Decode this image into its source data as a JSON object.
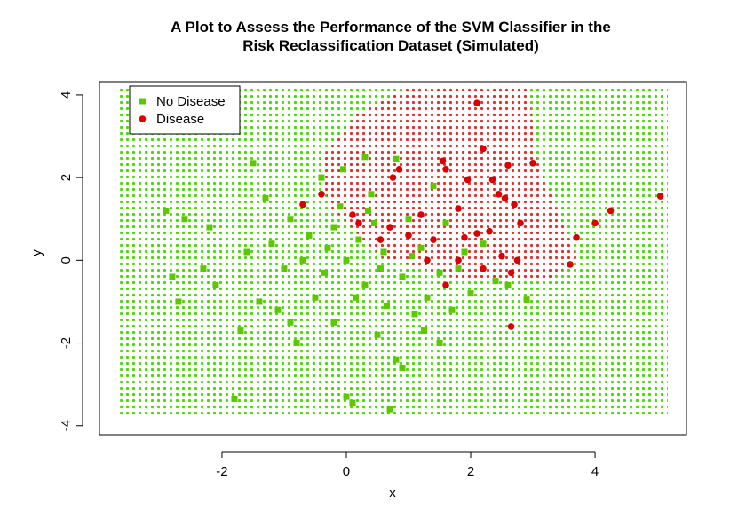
{
  "chart_data": {
    "type": "scatter",
    "title": [
      "A Plot to Assess the Performance of the SVM Classifier in the",
      "Risk Reclassification Dataset (Simulated)"
    ],
    "x_label": "x",
    "y_label": "y",
    "xlim": [
      -3.97,
      5.47
    ],
    "ylim": [
      -4.22,
      4.32
    ],
    "xticks": [
      -2,
      0,
      2,
      4
    ],
    "yticks": [
      -4,
      -2,
      0,
      2,
      4
    ],
    "legend_position": "top-left",
    "grid_extent": {
      "x": [
        -3.64,
        5.17
      ],
      "y": [
        -3.76,
        4.2
      ],
      "color": "#44dd00"
    },
    "decision_region": {
      "color": "#e03030",
      "x": [
        1.0,
        2.93,
        3.07,
        3.71,
        3.29,
        1.86,
        0.57,
        -0.29,
        -0.43,
        0.14
      ],
      "y": [
        4.2,
        4.2,
        2.43,
        0.06,
        -0.47,
        -0.47,
        0.06,
        1.35,
        2.43,
        3.5
      ]
    },
    "series": [
      {
        "name": "No Disease",
        "color": "#5cc800",
        "marker": "square",
        "x": [
          -2.9,
          -2.6,
          -2.8,
          -2.7,
          -2.2,
          -2.1,
          -1.8,
          -1.7,
          -1.5,
          -1.3,
          -1.2,
          -1.0,
          -1.1,
          -0.9,
          -0.8,
          -0.6,
          -0.5,
          -0.4,
          -0.3,
          -0.2,
          -0.1,
          0.0,
          0.0,
          0.1,
          0.2,
          0.3,
          0.4,
          0.5,
          0.6,
          0.7,
          0.8,
          0.9,
          1.0,
          1.1,
          1.2,
          1.3,
          1.4,
          1.5,
          1.6,
          1.7,
          1.9,
          2.0,
          2.2,
          2.4,
          2.6,
          1.5,
          0.9,
          -1.4,
          -0.7,
          0.3,
          0.8,
          -0.2,
          0.45,
          1.05,
          -1.6,
          -2.3,
          0.15,
          -0.35,
          0.65,
          1.25,
          -0.05,
          0.35,
          -0.9,
          1.8,
          2.9,
          0.55
        ],
        "y": [
          1.2,
          1.0,
          -0.4,
          -1.0,
          0.8,
          -0.6,
          -3.35,
          -1.7,
          2.35,
          1.5,
          0.4,
          -0.2,
          -1.2,
          1.0,
          -2.0,
          0.6,
          -0.9,
          2.0,
          0.3,
          -1.5,
          1.3,
          0.0,
          -3.3,
          -3.45,
          0.5,
          -0.6,
          1.6,
          -1.8,
          0.2,
          -3.6,
          -2.4,
          -0.4,
          1.0,
          -1.3,
          0.3,
          -0.9,
          1.8,
          -0.3,
          0.9,
          -1.2,
          0.2,
          -0.8,
          0.4,
          -0.5,
          -0.6,
          -2.0,
          -2.6,
          -1.0,
          0.0,
          2.5,
          2.45,
          0.8,
          0.9,
          0.1,
          0.2,
          -0.2,
          -0.9,
          -0.3,
          -1.1,
          -1.7,
          2.2,
          1.2,
          -1.5,
          -0.2,
          -0.95,
          -0.2
        ]
      },
      {
        "name": "Disease",
        "color": "#dd0000",
        "marker": "circle",
        "x": [
          2.1,
          2.2,
          3.0,
          2.6,
          1.55,
          1.6,
          0.85,
          0.75,
          1.95,
          2.35,
          2.45,
          2.55,
          2.7,
          5.05,
          4.25,
          4.0,
          3.7,
          3.6,
          2.8,
          2.75,
          2.65,
          2.65,
          1.8,
          1.9,
          2.1,
          2.3,
          2.5,
          1.8,
          1.6,
          1.4,
          1.0,
          0.7,
          0.55,
          -0.4,
          -0.7,
          0.2,
          0.1,
          1.2,
          1.3,
          2.2
        ],
        "y": [
          3.8,
          2.7,
          2.35,
          2.3,
          2.4,
          2.2,
          2.2,
          2.0,
          1.95,
          1.95,
          1.6,
          1.5,
          1.35,
          1.55,
          1.2,
          0.9,
          0.55,
          -0.1,
          0.9,
          0.0,
          -0.3,
          -1.6,
          1.25,
          0.55,
          0.65,
          0.7,
          0.1,
          0.0,
          -0.6,
          0.5,
          0.6,
          0.8,
          0.5,
          1.6,
          1.35,
          0.9,
          1.1,
          1.1,
          0.0,
          -0.2
        ]
      }
    ]
  }
}
